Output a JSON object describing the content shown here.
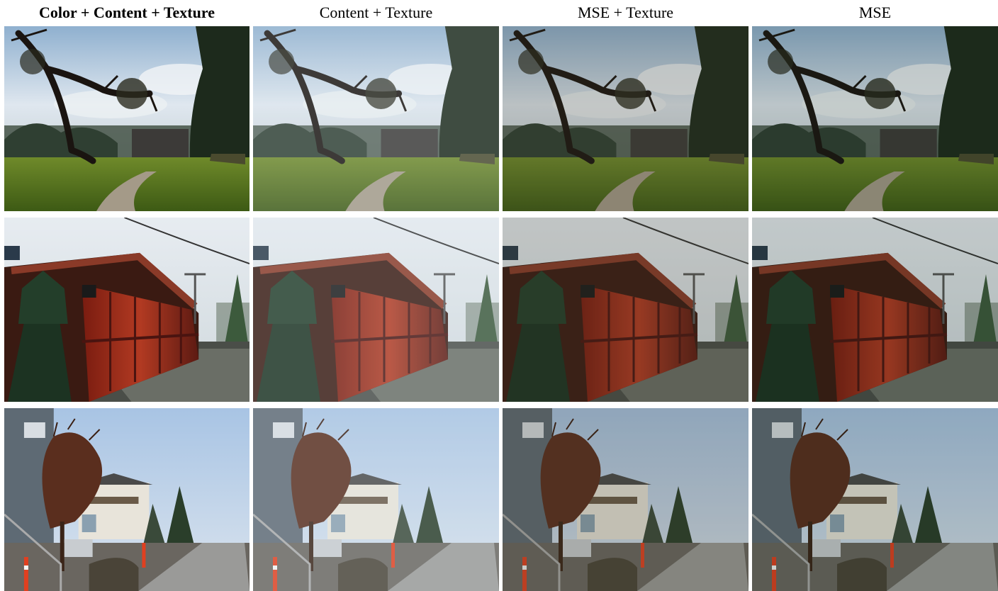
{
  "figure": {
    "column_titles": [
      {
        "label": "Color + Content + Texture",
        "bold": true
      },
      {
        "label": "Content + Texture",
        "bold": false
      },
      {
        "label": "MSE + Texture",
        "bold": false
      },
      {
        "label": "MSE",
        "bold": false
      }
    ],
    "rows": [
      {
        "scene": "park-with-tree-and-path"
      },
      {
        "scene": "red-wooden-hut-christmas-market"
      },
      {
        "scene": "residential-street-with-tree"
      }
    ],
    "variant_tints": [
      "#000000",
      "#dfe8ec",
      "#3a3a2a",
      "#1a2a1a"
    ]
  }
}
